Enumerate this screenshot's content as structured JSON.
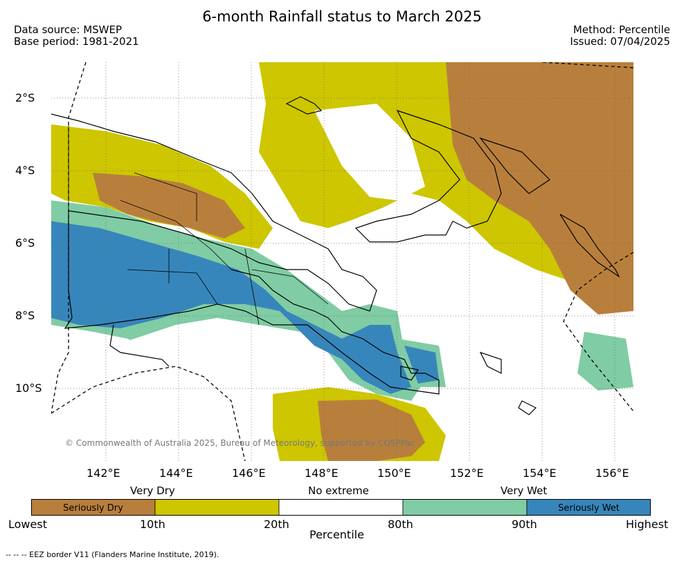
{
  "title": "6-month Rainfall status to March 2025",
  "meta": {
    "data_source": "Data source: MSWEP",
    "base_period": "Base period: 1981-2021",
    "method": "Method: Percentile",
    "issued": "Issued: 07/04/2025"
  },
  "map": {
    "lat_labels": [
      "2°S",
      "4°S",
      "6°S",
      "8°S",
      "10°S"
    ],
    "lon_labels": [
      "142°E",
      "144°E",
      "146°E",
      "148°E",
      "150°E",
      "152°E",
      "154°E",
      "156°E"
    ],
    "copyright": "© Commonwealth of Australia 2025, Bureau of Meteorology, supported by COSPPac",
    "graticule": "dotted"
  },
  "legend": {
    "band_labels": [
      "Very Dry",
      "No extreme",
      "Very Wet"
    ],
    "segments": [
      {
        "label": "Seriously Dry",
        "color": "#b87f3c"
      },
      {
        "label": "",
        "color": "#cdc600"
      },
      {
        "label": "",
        "color": "#ffffff"
      },
      {
        "label": "",
        "color": "#80cca4"
      },
      {
        "label": "Seriously Wet",
        "color": "#3786bb"
      }
    ],
    "ticks": [
      "Lowest",
      "10th",
      "20th",
      "80th",
      "90th",
      "Highest"
    ],
    "axis_title": "Percentile"
  },
  "footer": "--  --  -- EEZ border V11 (Flanders Marine Institute, 2019)."
}
